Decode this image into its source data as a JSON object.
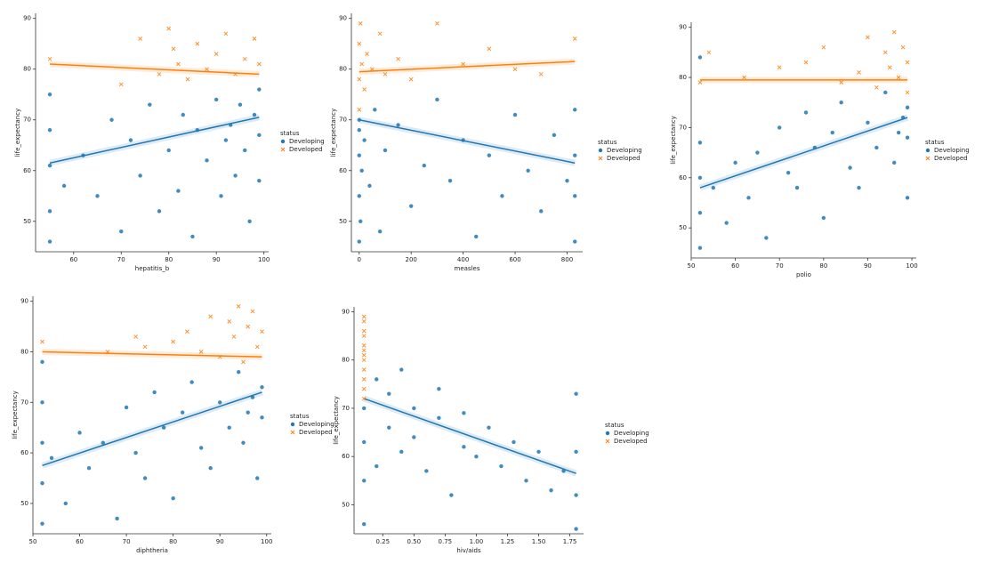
{
  "chart_data": [
    {
      "type": "scatter",
      "xlabel": "hepatitis_b",
      "ylabel": "life_expectancy",
      "legend_title": "status",
      "xlim": [
        52,
        101
      ],
      "ylim": [
        44,
        91
      ],
      "xticks": [
        60,
        70,
        80,
        90,
        100
      ],
      "yticks": [
        50,
        60,
        70,
        80,
        90
      ],
      "series": [
        {
          "name": "Developing",
          "color": "#1f77b4",
          "marker": "o",
          "x": [
            55,
            55,
            55,
            55,
            55,
            58,
            62,
            65,
            68,
            70,
            72,
            74,
            76,
            78,
            80,
            82,
            83,
            85,
            86,
            88,
            90,
            91,
            92,
            93,
            94,
            95,
            96,
            97,
            98,
            99,
            99,
            99
          ],
          "values": [
            46,
            52,
            61,
            68,
            75,
            57,
            63,
            55,
            70,
            48,
            66,
            59,
            73,
            52,
            64,
            56,
            71,
            47,
            68,
            62,
            74,
            55,
            66,
            69,
            59,
            73,
            64,
            50,
            71,
            67,
            76,
            58
          ],
          "trend": {
            "x": [
              55,
              99
            ],
            "values": [
              61.5,
              70.5
            ]
          }
        },
        {
          "name": "Developed",
          "color": "#ff7f0e",
          "marker": "x",
          "x": [
            55,
            70,
            74,
            78,
            80,
            81,
            82,
            84,
            86,
            88,
            90,
            92,
            94,
            96,
            98,
            99
          ],
          "values": [
            82,
            77,
            86,
            79,
            88,
            84,
            81,
            78,
            85,
            80,
            83,
            87,
            79,
            82,
            86,
            81
          ],
          "trend": {
            "x": [
              55,
              99
            ],
            "values": [
              81,
              79
            ]
          }
        }
      ]
    },
    {
      "type": "scatter",
      "xlabel": "measles",
      "ylabel": "life_expectancy",
      "legend_title": "status",
      "xlim": [
        -30,
        860
      ],
      "ylim": [
        44,
        91
      ],
      "xticks": [
        0,
        200,
        400,
        600,
        800
      ],
      "yticks": [
        50,
        60,
        70,
        80,
        90
      ],
      "series": [
        {
          "name": "Developing",
          "color": "#1f77b4",
          "marker": "o",
          "x": [
            0,
            0,
            0,
            0,
            0,
            5,
            10,
            20,
            40,
            60,
            80,
            100,
            150,
            200,
            250,
            300,
            350,
            400,
            450,
            500,
            550,
            600,
            650,
            700,
            750,
            800,
            830,
            830,
            830,
            830
          ],
          "values": [
            46,
            55,
            63,
            70,
            68,
            50,
            60,
            66,
            57,
            72,
            48,
            64,
            69,
            53,
            61,
            74,
            58,
            66,
            47,
            63,
            55,
            71,
            60,
            52,
            67,
            58,
            46,
            55,
            63,
            72
          ],
          "trend": {
            "x": [
              0,
              830
            ],
            "values": [
              70,
              61.5
            ]
          }
        },
        {
          "name": "Developed",
          "color": "#ff7f0e",
          "marker": "x",
          "x": [
            0,
            0,
            0,
            5,
            10,
            20,
            30,
            50,
            80,
            100,
            150,
            200,
            300,
            400,
            500,
            600,
            700,
            830
          ],
          "values": [
            72,
            78,
            85,
            89,
            81,
            76,
            83,
            80,
            87,
            79,
            82,
            78,
            89,
            81,
            84,
            80,
            79,
            86
          ],
          "trend": {
            "x": [
              0,
              830
            ],
            "values": [
              79.5,
              81.5
            ]
          }
        }
      ]
    },
    {
      "type": "scatter",
      "xlabel": "polio",
      "ylabel": "life_expectancy",
      "legend_title": "status",
      "xlim": [
        50,
        101
      ],
      "ylim": [
        44,
        91
      ],
      "xticks": [
        50,
        60,
        70,
        80,
        90,
        100
      ],
      "yticks": [
        50,
        60,
        70,
        80,
        90
      ],
      "series": [
        {
          "name": "Developing",
          "color": "#1f77b4",
          "marker": "o",
          "x": [
            52,
            52,
            52,
            52,
            52,
            55,
            58,
            60,
            63,
            65,
            67,
            70,
            72,
            74,
            76,
            78,
            80,
            82,
            84,
            86,
            88,
            90,
            92,
            94,
            96,
            97,
            98,
            99,
            99,
            99
          ],
          "values": [
            46,
            53,
            60,
            67,
            84,
            58,
            51,
            63,
            56,
            65,
            48,
            70,
            61,
            58,
            73,
            66,
            52,
            69,
            75,
            62,
            58,
            71,
            66,
            77,
            63,
            69,
            72,
            56,
            74,
            68
          ],
          "trend": {
            "x": [
              52,
              99
            ],
            "values": [
              58,
              72
            ]
          }
        },
        {
          "name": "Developed",
          "color": "#ff7f0e",
          "marker": "x",
          "x": [
            52,
            54,
            62,
            70,
            76,
            80,
            84,
            88,
            90,
            92,
            94,
            95,
            96,
            97,
            98,
            99,
            99
          ],
          "values": [
            79,
            85,
            80,
            82,
            83,
            86,
            79,
            81,
            88,
            78,
            85,
            82,
            89,
            80,
            86,
            83,
            77
          ],
          "trend": {
            "x": [
              52,
              99
            ],
            "values": [
              79.5,
              79.5
            ]
          }
        }
      ]
    },
    {
      "type": "scatter",
      "xlabel": "diphtheria",
      "ylabel": "life_expectancy",
      "legend_title": "status",
      "xlim": [
        50,
        101
      ],
      "ylim": [
        44,
        91
      ],
      "xticks": [
        50,
        60,
        70,
        80,
        90,
        100
      ],
      "yticks": [
        50,
        60,
        70,
        80,
        90
      ],
      "series": [
        {
          "name": "Developing",
          "color": "#1f77b4",
          "marker": "o",
          "x": [
            52,
            52,
            52,
            52,
            52,
            54,
            57,
            60,
            62,
            65,
            68,
            70,
            72,
            74,
            76,
            78,
            80,
            82,
            84,
            86,
            88,
            90,
            92,
            94,
            95,
            96,
            97,
            98,
            99,
            99
          ],
          "values": [
            46,
            54,
            62,
            70,
            78,
            59,
            50,
            64,
            57,
            62,
            47,
            69,
            60,
            55,
            72,
            65,
            51,
            68,
            74,
            61,
            57,
            70,
            65,
            76,
            62,
            68,
            71,
            55,
            73,
            67
          ],
          "trend": {
            "x": [
              52,
              99
            ],
            "values": [
              57.5,
              72
            ]
          }
        },
        {
          "name": "Developed",
          "color": "#ff7f0e",
          "marker": "x",
          "x": [
            52,
            66,
            72,
            74,
            80,
            83,
            86,
            88,
            90,
            92,
            93,
            94,
            95,
            96,
            97,
            98,
            99
          ],
          "values": [
            82,
            80,
            83,
            81,
            82,
            84,
            80,
            87,
            79,
            86,
            83,
            89,
            78,
            85,
            88,
            81,
            84
          ],
          "trend": {
            "x": [
              52,
              99
            ],
            "values": [
              80,
              79
            ]
          }
        }
      ]
    },
    {
      "type": "scatter",
      "xlabel": "hiv/aids",
      "ylabel": "life_expectancy",
      "legend_title": "status",
      "xlim": [
        0.02,
        1.86
      ],
      "ylim": [
        44,
        91
      ],
      "xticks": [
        0.25,
        {
          "value": 0.5,
          "label": "0.50"
        },
        0.75,
        {
          "value": 1,
          "label": "1.00"
        },
        1.25,
        {
          "value": 1.5,
          "label": "1.50"
        },
        1.75
      ],
      "yticks": [
        50,
        60,
        70,
        80,
        90
      ],
      "series": [
        {
          "name": "Developing",
          "color": "#1f77b4",
          "marker": "o",
          "x": [
            0.1,
            0.1,
            0.1,
            0.1,
            0.2,
            0.2,
            0.3,
            0.3,
            0.4,
            0.4,
            0.5,
            0.5,
            0.6,
            0.7,
            0.7,
            0.8,
            0.9,
            0.9,
            1.0,
            1.1,
            1.2,
            1.3,
            1.4,
            1.5,
            1.6,
            1.7,
            1.8,
            1.8,
            1.8,
            1.8
          ],
          "values": [
            46,
            55,
            63,
            70,
            58,
            76,
            66,
            73,
            61,
            78,
            64,
            70,
            57,
            68,
            74,
            52,
            62,
            69,
            60,
            66,
            58,
            63,
            55,
            61,
            53,
            57,
            45,
            52,
            61,
            73
          ],
          "trend": {
            "x": [
              0.1,
              1.8
            ],
            "values": [
              72,
              56.5
            ]
          }
        },
        {
          "name": "Developed",
          "color": "#ff7f0e",
          "marker": "x",
          "x": [
            0.1,
            0.1,
            0.1,
            0.1,
            0.1,
            0.1,
            0.1,
            0.1,
            0.1,
            0.1,
            0.1,
            0.1
          ],
          "values": [
            72,
            74,
            76,
            78,
            80,
            81,
            82,
            83,
            85,
            86,
            88,
            89
          ]
        }
      ]
    }
  ]
}
